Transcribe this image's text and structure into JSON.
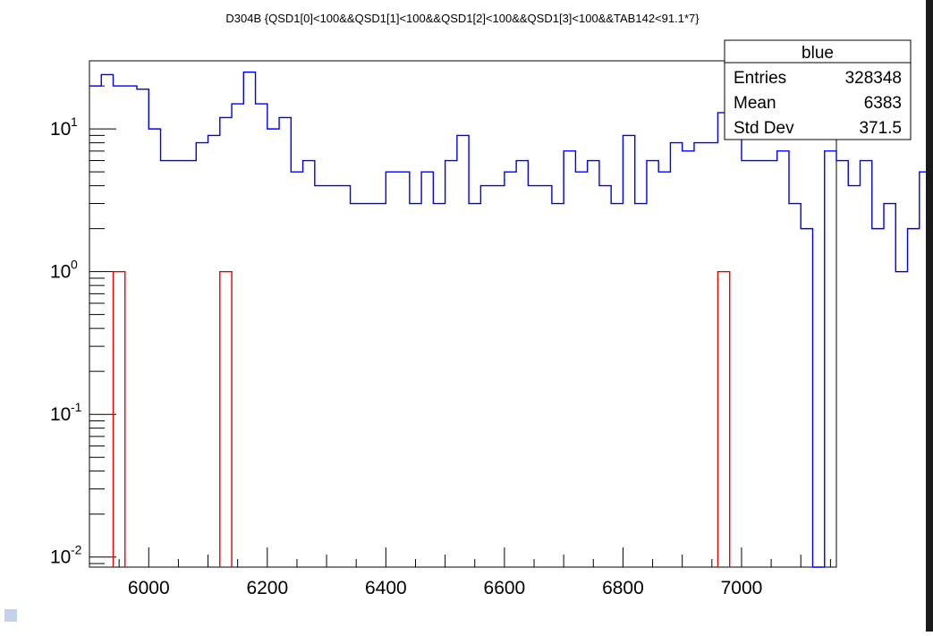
{
  "chart_data": {
    "type": "histogram",
    "title": "D304B {QSD1[0]<100&&QSD1[1]<100&&QSD1[2]<100&&QSD1[3]<100&&TAB142<91.1*7}",
    "x_axis": {
      "range": [
        5900,
        7160
      ],
      "ticks": [
        6000,
        6200,
        6400,
        6600,
        6800,
        7000
      ],
      "tick_labels": [
        "6000",
        "6200",
        "6400",
        "6600",
        "6800",
        "7000"
      ],
      "xlabel": ""
    },
    "y_axis": {
      "scale": "log",
      "range": [
        0.0085,
        30
      ],
      "ticks": [
        {
          "value": 0.01,
          "base": "10",
          "exp": "-2"
        },
        {
          "value": 0.1,
          "base": "10",
          "exp": "-1"
        },
        {
          "value": 1,
          "base": "10",
          "exp": "0"
        },
        {
          "value": 10,
          "base": "10",
          "exp": "1"
        }
      ],
      "ylabel": ""
    },
    "bin_width": 20,
    "series": [
      {
        "name": "blue",
        "color": "#0000ee",
        "bin_edges_start": 5900,
        "values": [
          20,
          24,
          20,
          20,
          19,
          10,
          6,
          6,
          6,
          8,
          9,
          12,
          15,
          25,
          15,
          10,
          12,
          5,
          6,
          4,
          4,
          4,
          3,
          3,
          3,
          5,
          5,
          3,
          5,
          3,
          6,
          9,
          3,
          4,
          4,
          5,
          6,
          4,
          4,
          3,
          7,
          5,
          6,
          4,
          3,
          9,
          3,
          6,
          5,
          8,
          7,
          8,
          8,
          13,
          12,
          6,
          6,
          6,
          7,
          3,
          2,
          0,
          7,
          6,
          4,
          6,
          2,
          3,
          1,
          2,
          5
        ]
      },
      {
        "name": "red",
        "color": "#ee0000",
        "bins": [
          {
            "x_low": 5940,
            "x_high": 5960,
            "value": 1
          },
          {
            "x_low": 6120,
            "x_high": 6140,
            "value": 1
          },
          {
            "x_low": 6960,
            "x_high": 6980,
            "value": 1
          }
        ]
      }
    ],
    "stats_box": {
      "title": "blue",
      "rows": [
        {
          "label": "Entries",
          "value": "328348"
        },
        {
          "label": "Mean",
          "value": "6383"
        },
        {
          "label": "Std Dev",
          "value": "371.5"
        }
      ]
    }
  }
}
